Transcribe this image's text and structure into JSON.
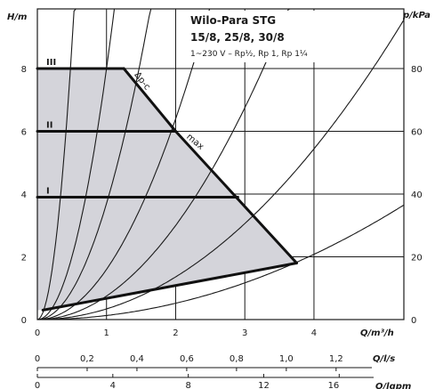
{
  "chart_data": {
    "type": "line",
    "title": "Wilo-Para STG",
    "subtitle": "15/8, 25/8, 30/8",
    "note": "1~230 V – Rp½, Rp 1, Rp 1¼",
    "y_left": {
      "label": "H/m",
      "ticks": [
        "0",
        "2",
        "4",
        "6",
        "8"
      ],
      "range": [
        0,
        9.9
      ]
    },
    "y_right": {
      "label": "p/kPa",
      "ticks": [
        "0",
        "20",
        "40",
        "60",
        "80"
      ],
      "range": [
        0,
        99
      ]
    },
    "x_axes": [
      {
        "label": "Q/m³/h",
        "ticks": [
          "0",
          "1",
          "2",
          "3",
          "4"
        ],
        "range": [
          0,
          5.3
        ]
      },
      {
        "label": "Q/l/s",
        "ticks": [
          "0",
          "0,2",
          "0,4",
          "0,6",
          "0,8",
          "1,0",
          "1,2"
        ],
        "values": [
          0,
          0.2,
          0.4,
          0.6,
          0.8,
          1.0,
          1.2
        ]
      },
      {
        "label": "Q/lgpm",
        "ticks": [
          "0",
          "4",
          "8",
          "12",
          "16"
        ],
        "values": [
          0,
          4,
          8,
          12,
          16
        ]
      }
    ],
    "grid": true,
    "operating_area": [
      [
        0,
        8
      ],
      [
        1.25,
        8
      ],
      [
        2,
        6
      ],
      [
        3.75,
        1.8
      ],
      [
        0.08,
        0.3
      ],
      [
        0,
        0.3
      ]
    ],
    "series": [
      {
        "name": "III",
        "points": [
          [
            0,
            8
          ],
          [
            1.25,
            8
          ]
        ]
      },
      {
        "name": "II",
        "points": [
          [
            0,
            6
          ],
          [
            2,
            6
          ]
        ]
      },
      {
        "name": "I",
        "points": [
          [
            0,
            3.9
          ],
          [
            2.9,
            3.9
          ]
        ]
      },
      {
        "name": "Δp-c",
        "points": [
          [
            1.25,
            8
          ],
          [
            2,
            6
          ]
        ]
      },
      {
        "name": "max",
        "points": [
          [
            2,
            6
          ],
          [
            3.75,
            1.8
          ]
        ]
      }
    ],
    "min_curve": [
      [
        0.08,
        0.3
      ],
      [
        3.75,
        1.8
      ]
    ],
    "system_curves_k": [
      35,
      8,
      3.7,
      1.6,
      0.75,
      0.34,
      0.13
    ],
    "annotations": [
      "Δp-c",
      "max"
    ]
  }
}
